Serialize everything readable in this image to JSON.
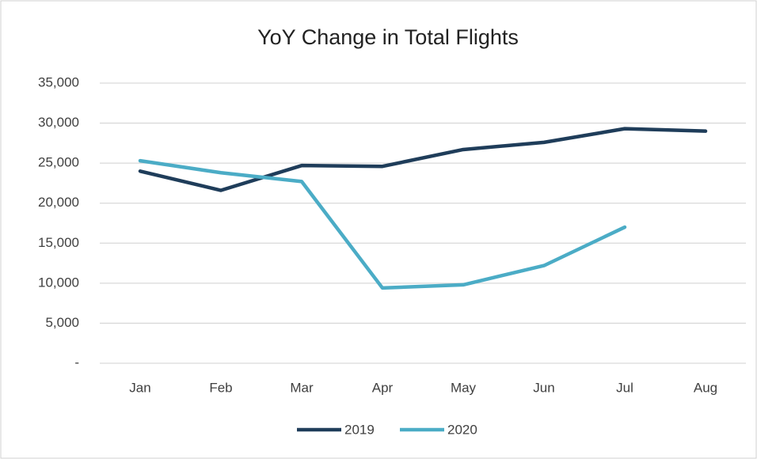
{
  "chart_data": {
    "type": "line",
    "title": "YoY Change in Total Flights",
    "categories": [
      "Jan",
      "Feb",
      "Mar",
      "Apr",
      "May",
      "Jun",
      "Jul",
      "Aug"
    ],
    "series": [
      {
        "name": "2019",
        "color": "#1f3d5a",
        "values": [
          24000,
          21600,
          24700,
          24600,
          26700,
          27600,
          29300,
          29000
        ]
      },
      {
        "name": "2020",
        "color": "#4bacc6",
        "values": [
          25300,
          23800,
          22700,
          9400,
          9800,
          12200,
          17000,
          null
        ]
      }
    ],
    "ylim": [
      0,
      35000
    ],
    "yticks": [
      {
        "value": 0,
        "label": "-"
      },
      {
        "value": 5000,
        "label": "5,000"
      },
      {
        "value": 10000,
        "label": "10,000"
      },
      {
        "value": 15000,
        "label": "15,000"
      },
      {
        "value": 20000,
        "label": "20,000"
      },
      {
        "value": 25000,
        "label": "25,000"
      },
      {
        "value": 30000,
        "label": "30,000"
      },
      {
        "value": 35000,
        "label": "35,000"
      }
    ],
    "grid": true,
    "legend": "bottom"
  }
}
